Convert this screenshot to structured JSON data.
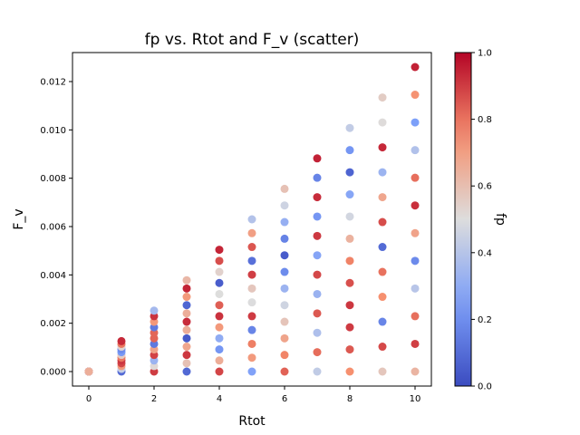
{
  "chart_data": {
    "type": "scatter",
    "title": "fp vs. Rtot and F_v (scatter)",
    "xlabel": "Rtot",
    "ylabel": "F_v",
    "xlim": [
      -0.5,
      10.5
    ],
    "ylim": [
      -0.0006,
      0.0132
    ],
    "xticks": [
      "0",
      "2",
      "4",
      "6",
      "8",
      "10"
    ],
    "yticks": [
      "0.000",
      "0.002",
      "0.004",
      "0.006",
      "0.008",
      "0.010",
      "0.012"
    ],
    "colorbar": {
      "label": "fp",
      "colormap": "coolwarm",
      "range": [
        0.0,
        1.0
      ],
      "ticks": [
        "0.0",
        "0.2",
        "0.4",
        "0.6",
        "0.8",
        "1.0"
      ]
    },
    "points_per_x": 12,
    "grid": false,
    "max_fv": 0.0126
  }
}
